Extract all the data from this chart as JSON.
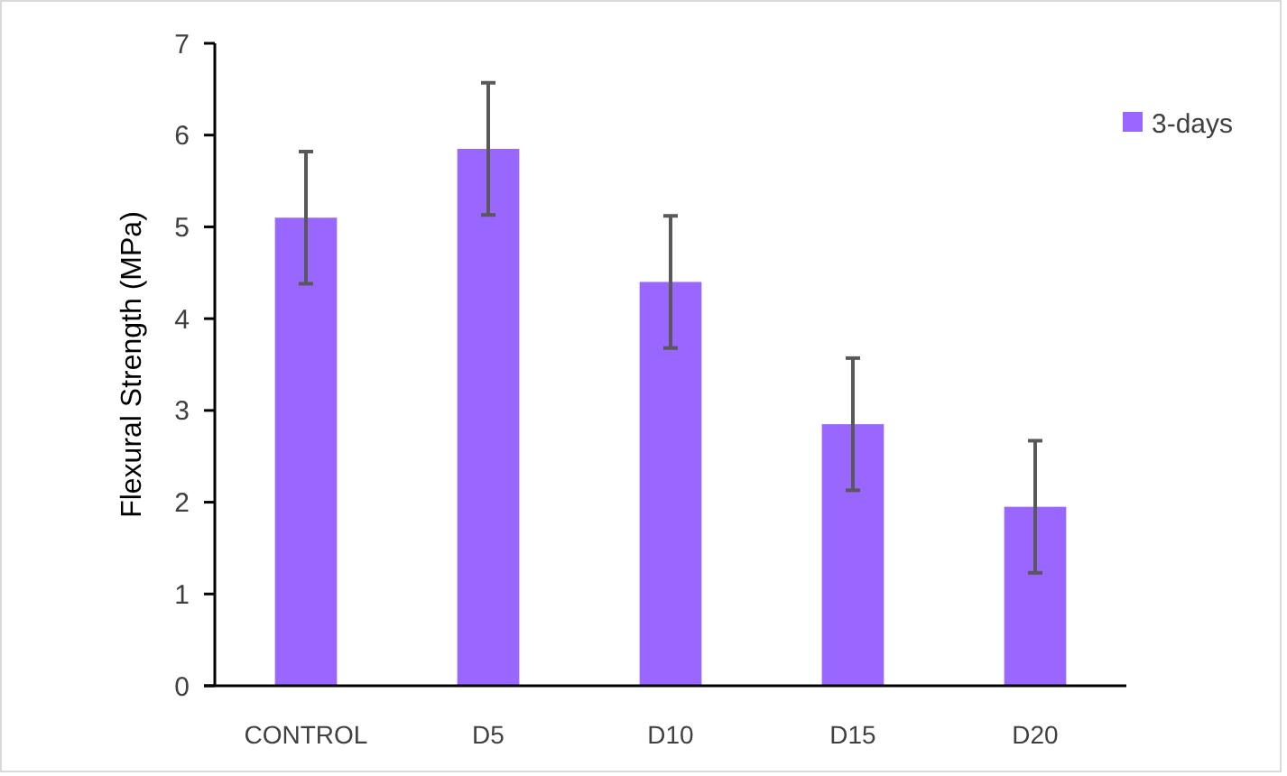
{
  "chart_data": {
    "type": "bar",
    "ylabel": "Flexural Strength (MPa)",
    "categories": [
      "CONTROL",
      "D5",
      "D10",
      "D15",
      "D20"
    ],
    "series": [
      {
        "name": "3-days",
        "color": "#9966ff",
        "values": [
          5.1,
          5.85,
          4.4,
          2.85,
          1.95
        ],
        "errors": [
          0.72,
          0.72,
          0.72,
          0.72,
          0.72
        ]
      }
    ],
    "ylim": [
      0,
      7
    ],
    "yticks": [
      0,
      1,
      2,
      3,
      4,
      5,
      6,
      7
    ],
    "grid": false,
    "legend": "top right"
  }
}
